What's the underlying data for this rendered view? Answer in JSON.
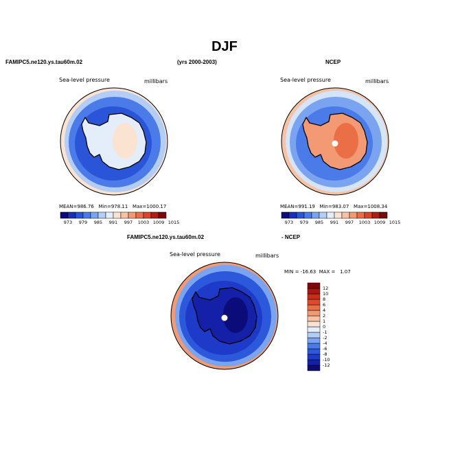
{
  "page": {
    "title": "DJF",
    "model_name": "FAMIPC5.ne120.ys.tau60m.02",
    "years": "(yrs 2000-2003)",
    "obs_name": "NCEP",
    "diff_model_name": "FAMIPC5.ne120.ys.tau60m.02",
    "diff_obs_name": "- NCEP"
  },
  "panels": {
    "model": {
      "variable": "Sea-level pressure",
      "units": "millibars",
      "mean_label": "MEAN=",
      "mean": "986.76",
      "min_label": "Min=",
      "min": "978.11",
      "max_label": "Max=",
      "max": "1000.17"
    },
    "obs": {
      "variable": "Sea-level pressure",
      "units": "millibars",
      "mean_label": "MEAN=",
      "mean": "991.19",
      "min_label": "Min=",
      "min": "983.07",
      "max_label": "Max=",
      "max": "1008.34"
    },
    "diff": {
      "variable": "Sea-level pressure",
      "units": "millibars",
      "min_label": "MIN =",
      "min": "-16.63",
      "max_label": "MAX =",
      "max": "1.07"
    }
  },
  "colorbars": {
    "field": {
      "colors": [
        "#0b0b7a",
        "#1a2fb8",
        "#2a55d8",
        "#4a7be8",
        "#7aa3f0",
        "#b4cdf5",
        "#e4eefa",
        "#fbe3d2",
        "#f7c1a4",
        "#f39a74",
        "#ea6f46",
        "#d9452a",
        "#b01d14",
        "#7a0a0a"
      ],
      "ticks": [
        "973",
        "979",
        "985",
        "991",
        "997",
        "1003",
        "1009",
        "1015"
      ]
    },
    "diff": {
      "colors": [
        "#0b0b7a",
        "#1420a8",
        "#1e3ac8",
        "#2c58dc",
        "#4a7be8",
        "#7aa3f0",
        "#b4cdf5",
        "#e4eefa",
        "#fbe3d2",
        "#f7c1a4",
        "#f39a74",
        "#ea6f46",
        "#df4a2c",
        "#c92d1a",
        "#a81812",
        "#7a0a0a"
      ],
      "ticks": [
        "-12",
        "-10",
        "-8",
        "-6",
        "-4",
        "-2",
        "-1",
        "0",
        "1",
        "2",
        "4",
        "6",
        "8",
        "10",
        "12"
      ]
    }
  },
  "maps": {
    "model": {
      "ocean": "#2a55d8",
      "belt": "#4a7be8",
      "ring": "#b4cdf5",
      "edge": "#fbe3d2",
      "inner": "#e4eefa",
      "core": "#fbe3d2"
    },
    "obs": {
      "ocean": "#4a7be8",
      "belt": "#7aa3f0",
      "ring": "#d6e4f7",
      "edge": "#f7c1a4",
      "inner": "#f39a74",
      "core": "#ea6f46"
    },
    "diff": {
      "ocean": "#1e3ac8",
      "belt": "#2c58dc",
      "ring": "#7aa3f0",
      "edge": "#f39a74",
      "inner": "#1420a8",
      "core": "#0b0b7a"
    }
  }
}
